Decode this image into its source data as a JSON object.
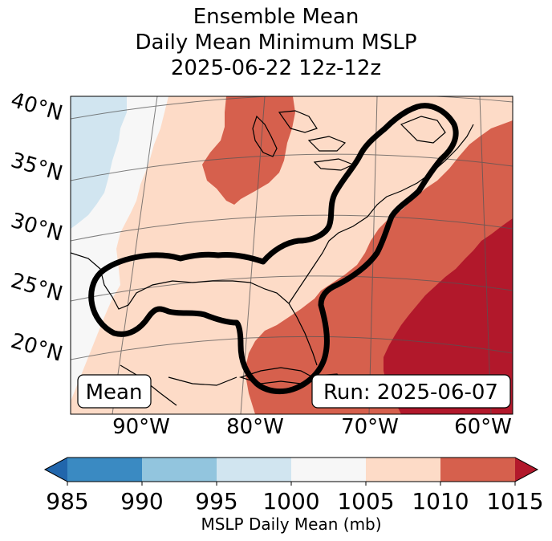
{
  "title": {
    "line1": "Ensemble Mean",
    "line2": "Daily Mean Minimum MSLP",
    "line3": "2025-06-22 12z-12z"
  },
  "map": {
    "lat_labels": [
      "40°N",
      "35°N",
      "30°N",
      "25°N",
      "20°N"
    ],
    "lon_labels": [
      "90°W",
      "80°W",
      "70°W",
      "60°W"
    ],
    "stat_box": "Mean",
    "run_box": "Run: 2025-06-07"
  },
  "colorbar": {
    "ticks": [
      "985",
      "990",
      "995",
      "1000",
      "1005",
      "1010",
      "1015"
    ],
    "label": "MSLP Daily Mean (mb)",
    "bin_colors": [
      "#3a8ac2",
      "#92c5de",
      "#d1e5f0",
      "#f7f7f7",
      "#fddbc7",
      "#d6604d",
      "#b2182b"
    ],
    "under_color": "#2166ac",
    "over_color": "#b2182b"
  },
  "colors": {
    "c995_1000": "#d1e5f0",
    "c1000_1005": "#f7f7f7",
    "c1005_1010": "#fddbc7",
    "c1010_1015": "#d6604d",
    "c1015_plus": "#b2182b"
  }
}
